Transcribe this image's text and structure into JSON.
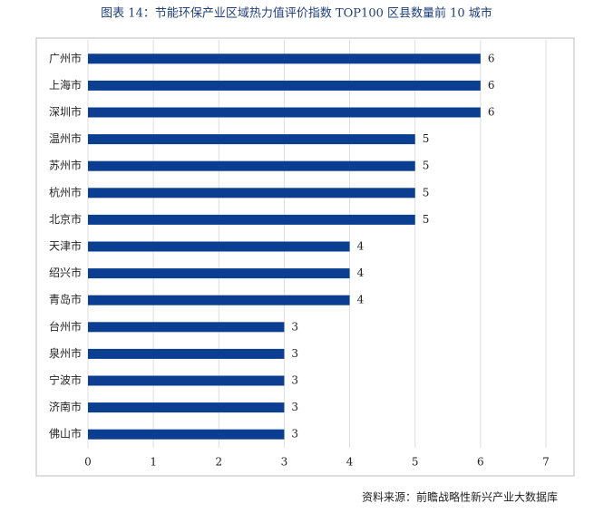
{
  "chart_data": {
    "type": "bar",
    "orientation": "horizontal",
    "title": "图表 14：节能环保产业区域热力值评价指数 TOP100 区县数量前 10 城市",
    "categories": [
      "广州市",
      "上海市",
      "深圳市",
      "温州市",
      "苏州市",
      "杭州市",
      "北京市",
      "天津市",
      "绍兴市",
      "青岛市",
      "台州市",
      "泉州市",
      "宁波市",
      "济南市",
      "佛山市"
    ],
    "values": [
      6,
      6,
      6,
      5,
      5,
      5,
      5,
      4,
      4,
      4,
      3,
      3,
      3,
      3,
      3
    ],
    "color": "#0b3d91",
    "xlim": [
      0,
      7
    ],
    "xticks": [
      0,
      1,
      2,
      3,
      4,
      5,
      6,
      7
    ],
    "grid": true,
    "source": "资料来源：前瞻战略性新兴产业大数据库"
  }
}
